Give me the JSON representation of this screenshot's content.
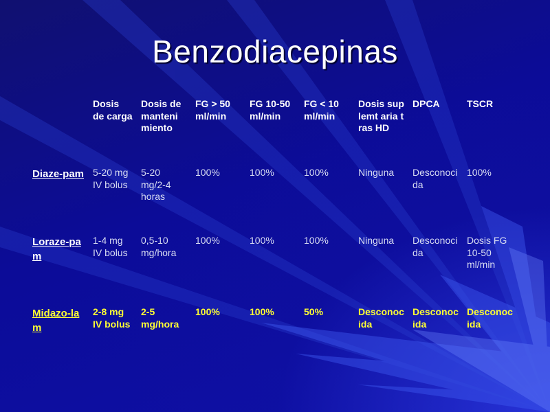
{
  "title": "Benzodiacepinas",
  "headers": [
    "",
    "Dosis de carga",
    "Dosis de manteni miento",
    "FG > 50 ml/min",
    "FG 10-50 ml/min",
    "FG < 10 ml/min",
    "Dosis suplemt aria tras HD",
    "DPCA",
    "TSCR"
  ],
  "rows": [
    [
      "Diaze-pam",
      "5-20 mg IV bolus",
      "5-20 mg/2-4 horas",
      "100%",
      "100%",
      "100%",
      "Ninguna",
      "Desconocida",
      "100%"
    ],
    [
      "Loraze-pam",
      "1-4 mg IV bolus",
      "0,5-10 mg/hora",
      "100%",
      "100%",
      "100%",
      "Ninguna",
      "Desconocida",
      "Dosis FG 10-50 ml/min"
    ],
    [
      "Midazo-lam",
      "2-8 mg IV bolus",
      "2-5 mg/hora",
      "100%",
      "100%",
      "50%",
      "Desconocida",
      "Desconocida",
      "Desconocida"
    ]
  ]
}
